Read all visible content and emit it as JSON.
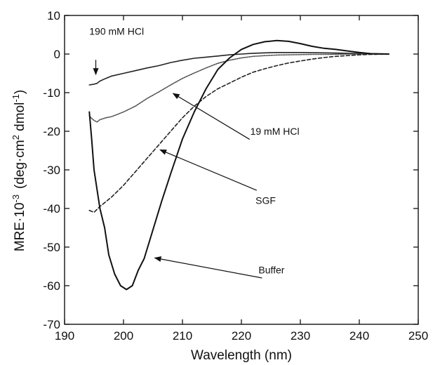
{
  "chart_data": {
    "type": "line",
    "title": "",
    "xlabel": "Wavelength (nm)",
    "ylabel_main": "MRE·10",
    "ylabel_exp": "-3",
    "ylabel_units_a": "(deg·cm",
    "ylabel_units_sup1": "2",
    "ylabel_units_b": " dmol",
    "ylabel_units_sup2": "-1",
    "ylabel_units_c": ")",
    "xlim": [
      190,
      250
    ],
    "ylim": [
      -70,
      10
    ],
    "xticks": [
      190,
      200,
      210,
      220,
      230,
      240,
      250
    ],
    "yticks": [
      10,
      0,
      -10,
      -20,
      -30,
      -40,
      -50,
      -60,
      -70
    ],
    "grid": false,
    "series": [
      {
        "name": "190 mM HCl",
        "style": "solid",
        "points": [
          [
            194.2,
            -8
          ],
          [
            195,
            -7.8
          ],
          [
            195.5,
            -7.6
          ],
          [
            196,
            -7
          ],
          [
            197,
            -6.3
          ],
          [
            198,
            -5.7
          ],
          [
            200,
            -5
          ],
          [
            202,
            -4.3
          ],
          [
            204,
            -3.6
          ],
          [
            206,
            -3
          ],
          [
            208,
            -2.2
          ],
          [
            210,
            -1.6
          ],
          [
            212,
            -1.1
          ],
          [
            214,
            -0.8
          ],
          [
            216,
            -0.5
          ],
          [
            218,
            -0.2
          ],
          [
            220,
            0
          ],
          [
            222,
            0.2
          ],
          [
            224,
            0.3
          ],
          [
            226,
            0.4
          ],
          [
            228,
            0.4
          ],
          [
            230,
            0.4
          ],
          [
            232,
            0.35
          ],
          [
            234,
            0.3
          ],
          [
            236,
            0.25
          ],
          [
            238,
            0.2
          ],
          [
            240,
            0.15
          ],
          [
            242,
            0.1
          ],
          [
            245,
            0
          ]
        ]
      },
      {
        "name": "19 mM HCl",
        "style": "dotted-gray",
        "points": [
          [
            194.2,
            -16
          ],
          [
            194.5,
            -16.5
          ],
          [
            195,
            -17.2
          ],
          [
            195.5,
            -17.6
          ],
          [
            196,
            -17
          ],
          [
            197,
            -16.5
          ],
          [
            198,
            -16.2
          ],
          [
            200,
            -15
          ],
          [
            202,
            -13.5
          ],
          [
            204,
            -11.5
          ],
          [
            206,
            -9.8
          ],
          [
            208,
            -8
          ],
          [
            210,
            -6.3
          ],
          [
            212,
            -4.9
          ],
          [
            214,
            -3.6
          ],
          [
            216,
            -2.4
          ],
          [
            218,
            -1.6
          ],
          [
            220,
            -1
          ],
          [
            222,
            -0.6
          ],
          [
            224,
            -0.4
          ],
          [
            226,
            -0.25
          ],
          [
            228,
            -0.2
          ],
          [
            230,
            -0.15
          ],
          [
            232,
            -0.1
          ],
          [
            235,
            -0.1
          ],
          [
            238,
            0
          ],
          [
            240,
            0
          ],
          [
            245,
            0
          ]
        ]
      },
      {
        "name": "SGF",
        "style": "dashed",
        "points": [
          [
            194.2,
            -40.5
          ],
          [
            195,
            -41
          ],
          [
            196,
            -39.5
          ],
          [
            198,
            -37
          ],
          [
            200,
            -34
          ],
          [
            202,
            -30.5
          ],
          [
            204,
            -27
          ],
          [
            206,
            -23.5
          ],
          [
            208,
            -20
          ],
          [
            210,
            -16.5
          ],
          [
            212,
            -13.5
          ],
          [
            214,
            -11
          ],
          [
            216,
            -9
          ],
          [
            218,
            -7.5
          ],
          [
            220,
            -6
          ],
          [
            222,
            -4.7
          ],
          [
            224,
            -3.8
          ],
          [
            226,
            -3
          ],
          [
            228,
            -2.3
          ],
          [
            230,
            -1.8
          ],
          [
            232,
            -1.3
          ],
          [
            234,
            -0.9
          ],
          [
            236,
            -0.6
          ],
          [
            238,
            -0.4
          ],
          [
            240,
            -0.2
          ],
          [
            242,
            -0.1
          ],
          [
            245,
            0
          ]
        ]
      },
      {
        "name": "Buffer",
        "style": "solid-bold",
        "points": [
          [
            194.2,
            -15
          ],
          [
            194.6,
            -22
          ],
          [
            195,
            -30
          ],
          [
            195.5,
            -35
          ],
          [
            196,
            -40
          ],
          [
            196.8,
            -45
          ],
          [
            197.5,
            -52
          ],
          [
            198.5,
            -57
          ],
          [
            199.5,
            -60
          ],
          [
            200.5,
            -61
          ],
          [
            201.5,
            -60
          ],
          [
            202.5,
            -56
          ],
          [
            203.5,
            -53
          ],
          [
            204.5,
            -48
          ],
          [
            205.5,
            -43
          ],
          [
            206.5,
            -38
          ],
          [
            208,
            -31
          ],
          [
            210,
            -22
          ],
          [
            212,
            -15
          ],
          [
            214,
            -9
          ],
          [
            216,
            -4
          ],
          [
            218,
            -1
          ],
          [
            220,
            1.2
          ],
          [
            222,
            2.5
          ],
          [
            224,
            3.2
          ],
          [
            226,
            3.5
          ],
          [
            228,
            3.3
          ],
          [
            230,
            2.7
          ],
          [
            232,
            2
          ],
          [
            234,
            1.5
          ],
          [
            236,
            1.2
          ],
          [
            238,
            0.8
          ],
          [
            240,
            0.4
          ],
          [
            242,
            0.1
          ],
          [
            245,
            0
          ]
        ]
      }
    ],
    "annotations": [
      {
        "text": "190 mM HCl",
        "series": "190 mM HCl",
        "target": [
          195.3,
          -5.3
        ],
        "tail": [
          195.3,
          -1.5
        ],
        "label_at": [
          194.2,
          5.0
        ]
      },
      {
        "text": "19 mM HCl",
        "series": "19 mM HCl",
        "target": [
          208.4,
          -10.2
        ],
        "tail": [
          221.4,
          -22.1
        ],
        "label_at": [
          221.5,
          -20.9
        ]
      },
      {
        "text": "SGF",
        "series": "SGF",
        "target": [
          206.2,
          -24.8
        ],
        "tail": [
          222.6,
          -35.3
        ],
        "label_at": [
          222.4,
          -38.8
        ]
      },
      {
        "text": "Buffer",
        "series": "Buffer",
        "target": [
          205.3,
          -52.8
        ],
        "tail": [
          223.5,
          -58.0
        ],
        "label_at": [
          222.9,
          -56.8
        ]
      }
    ]
  }
}
